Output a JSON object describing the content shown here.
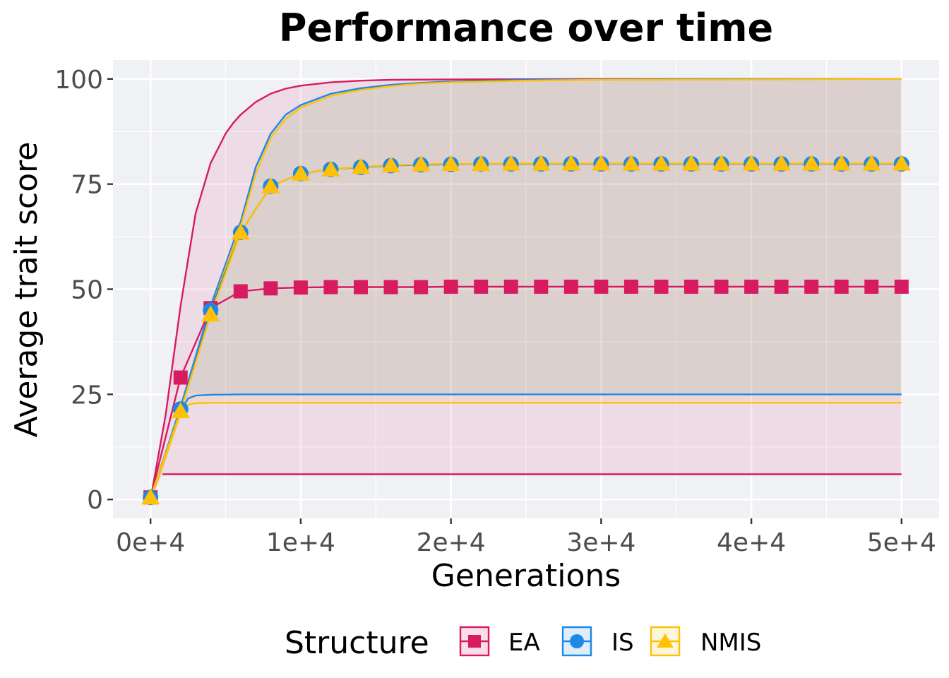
{
  "chart_data": {
    "type": "line",
    "title": "Performance over time",
    "xlabel": "Generations",
    "ylabel": "Average trait score",
    "xlim": [
      -2500,
      52500
    ],
    "ylim": [
      -4.5,
      104.5
    ],
    "x_ticks": [
      0,
      10000,
      20000,
      30000,
      40000,
      50000
    ],
    "x_tick_labels": [
      "0e+4",
      "1e+4",
      "2e+4",
      "3e+4",
      "4e+4",
      "5e+4"
    ],
    "y_ticks": [
      0,
      25,
      50,
      75,
      100
    ],
    "y_tick_labels": [
      "0",
      "25",
      "50",
      "75",
      "100"
    ],
    "grid": true,
    "legend": {
      "title": "Structure",
      "position": "bottom"
    },
    "background": "#F0F1F5",
    "x": [
      0,
      2000,
      4000,
      6000,
      8000,
      10000,
      12000,
      14000,
      16000,
      18000,
      20000,
      22000,
      24000,
      26000,
      28000,
      30000,
      32000,
      34000,
      36000,
      38000,
      40000,
      42000,
      44000,
      46000,
      48000,
      50000
    ],
    "series": [
      {
        "name": "EA",
        "color": "#D81B60",
        "marker": "square",
        "values": [
          0.5,
          29,
          45.5,
          49.5,
          50.2,
          50.4,
          50.5,
          50.5,
          50.5,
          50.5,
          50.6,
          50.6,
          50.6,
          50.6,
          50.6,
          50.6,
          50.6,
          50.6,
          50.6,
          50.6,
          50.6,
          50.6,
          50.6,
          50.6,
          50.6,
          50.6
        ],
        "band_lower_x": [
          800,
          2000,
          4000,
          6000,
          10000,
          20000,
          30000,
          40000,
          50000
        ],
        "band_lower": [
          6,
          6,
          6,
          6,
          6,
          6,
          6,
          6,
          6
        ],
        "band_upper_x": [
          0,
          1000,
          2000,
          3000,
          4000,
          5000,
          5500,
          6000,
          7000,
          8000,
          9000,
          10000,
          12000,
          14000,
          16000,
          20000,
          30000,
          40000,
          50000
        ],
        "band_upper": [
          0,
          20,
          46,
          68,
          80,
          87,
          89.5,
          91.5,
          94.5,
          96.5,
          97.7,
          98.4,
          99.2,
          99.6,
          99.8,
          99.9,
          100,
          100,
          100
        ]
      },
      {
        "name": "IS",
        "color": "#1E88E5",
        "marker": "circle",
        "values": [
          0.5,
          21.5,
          45,
          63.5,
          74.5,
          77.5,
          78.5,
          79,
          79.4,
          79.6,
          79.7,
          79.8,
          79.8,
          79.8,
          79.8,
          79.8,
          79.8,
          79.8,
          79.8,
          79.8,
          79.8,
          79.8,
          79.8,
          79.8,
          79.8,
          79.8
        ],
        "band_lower_x": [
          0,
          1000,
          2000,
          2500,
          3000,
          4000,
          6000,
          10000,
          20000,
          30000,
          40000,
          50000
        ],
        "band_lower": [
          0,
          10,
          21,
          24,
          24.7,
          24.9,
          25,
          25,
          25,
          25,
          25,
          25
        ],
        "band_upper_x": [
          0,
          2000,
          4000,
          6000,
          7000,
          8000,
          9000,
          10000,
          12000,
          14000,
          16000,
          18000,
          20000,
          25000,
          30000,
          40000,
          50000
        ],
        "band_upper": [
          0,
          22,
          46,
          66,
          79,
          87,
          91.5,
          93.8,
          96.5,
          97.8,
          98.6,
          99.1,
          99.4,
          99.8,
          99.9,
          100,
          100
        ]
      },
      {
        "name": "NMIS",
        "color": "#FFC107",
        "marker": "triangle",
        "values": [
          0.5,
          21,
          44,
          63.5,
          74.5,
          77.5,
          78.5,
          79.1,
          79.5,
          79.7,
          79.8,
          79.8,
          79.9,
          79.9,
          79.9,
          79.9,
          79.9,
          79.9,
          79.9,
          79.9,
          79.9,
          79.9,
          79.9,
          79.9,
          79.9,
          79.9
        ],
        "band_lower_x": [
          0,
          1000,
          2000,
          2500,
          3000,
          4000,
          6000,
          10000,
          20000,
          30000,
          40000,
          50000
        ],
        "band_lower": [
          0,
          10,
          20.5,
          22.5,
          22.9,
          23,
          23,
          23,
          23,
          23,
          23,
          23
        ],
        "band_upper_x": [
          0,
          2000,
          4000,
          6000,
          7000,
          8000,
          9000,
          10000,
          12000,
          14000,
          16000,
          18000,
          20000,
          25000,
          30000,
          40000,
          50000
        ],
        "band_upper": [
          0,
          21.5,
          45,
          65,
          77.5,
          86,
          90.5,
          93.2,
          96,
          97.4,
          98.3,
          98.9,
          99.2,
          99.6,
          99.8,
          99.9,
          100
        ]
      }
    ]
  }
}
